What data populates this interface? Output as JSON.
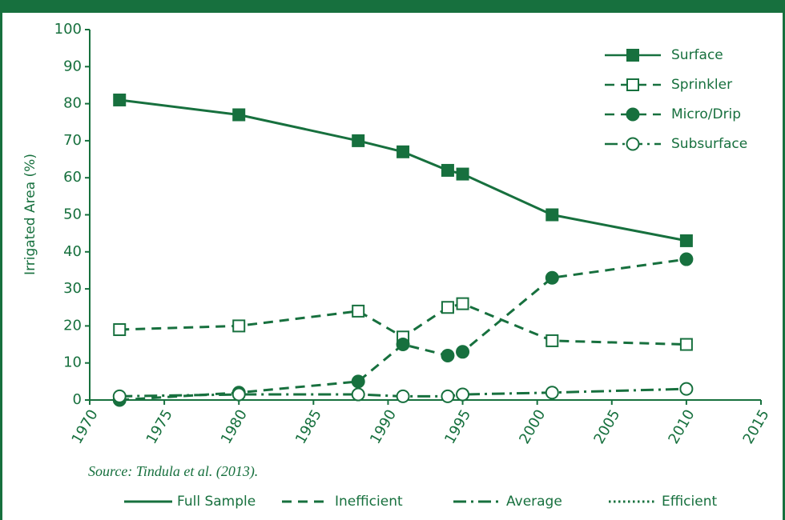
{
  "chart_data": {
    "type": "line",
    "ylabel": "Irrigated Area (%)",
    "source": "Source: Tindula et al. (2013).",
    "x": [
      1972,
      1980,
      1988,
      1991,
      1994,
      1995,
      2001,
      2010
    ],
    "series": [
      {
        "name": "Surface",
        "color": "#17703e",
        "dash": "solid",
        "marker": "filled-square",
        "values": [
          81,
          77,
          70,
          67,
          62,
          61,
          50,
          43
        ]
      },
      {
        "name": "Sprinkler",
        "color": "#17703e",
        "dash": "dashed",
        "marker": "open-square",
        "values": [
          19,
          20,
          24,
          17,
          25,
          26,
          16,
          15
        ]
      },
      {
        "name": "Micro/Drip",
        "color": "#17703e",
        "dash": "dashed",
        "marker": "filled-circle",
        "values": [
          0,
          2,
          5,
          15,
          12,
          13,
          33,
          38
        ]
      },
      {
        "name": "Subsurface",
        "color": "#17703e",
        "dash": "dashdot",
        "marker": "open-circle",
        "values": [
          1,
          1.5,
          1.5,
          1,
          1,
          1.5,
          2,
          3
        ]
      }
    ],
    "line_style_legend": [
      {
        "name": "Full Sample",
        "dash": "solid"
      },
      {
        "name": "Inefficient",
        "dash": "dashed"
      },
      {
        "name": "Average",
        "dash": "dashdot"
      },
      {
        "name": "Efficient",
        "dash": "dotted"
      }
    ],
    "xlim": [
      1970,
      2015
    ],
    "xticks": [
      1970,
      1975,
      1980,
      1985,
      1990,
      1995,
      2000,
      2005,
      2010,
      2015
    ],
    "ylim": [
      0,
      100
    ],
    "yticks": [
      0,
      10,
      20,
      30,
      40,
      50,
      60,
      70,
      80,
      90,
      100
    ],
    "legend": "upper right"
  }
}
